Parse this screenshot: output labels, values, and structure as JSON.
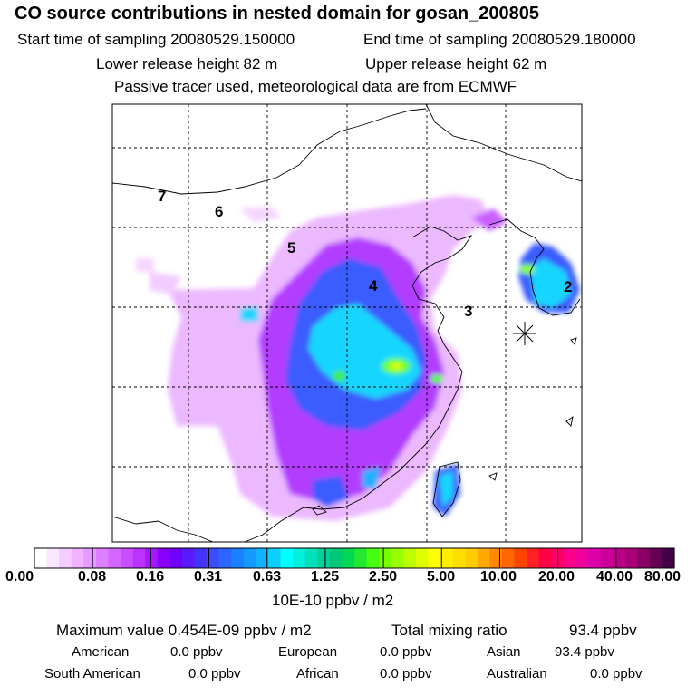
{
  "header": {
    "title": "CO  source contributions in nested domain for gosan_200805",
    "start_label": "Start time of sampling 20080529.150000",
    "end_label": "End time of sampling 20080529.180000",
    "lower_label": "Lower release height   82 m",
    "upper_label": "Upper release height   62 m",
    "tracer_label": "Passive tracer used, meteorological data are from ECMWF"
  },
  "map": {
    "region_numbers": [
      "7",
      "6",
      "5",
      "4",
      "3",
      "2"
    ],
    "receptor_marker": "star-marker",
    "grid": "dashed"
  },
  "colorbar": {
    "labels": [
      "0.00",
      "0.08",
      "0.16",
      "0.31",
      "0.63",
      "1.25",
      "2.50",
      "5.00",
      "10.00",
      "20.00",
      "40.00",
      "80.00"
    ],
    "colors": [
      "#ffffff",
      "#fbe6ff",
      "#f5ccff",
      "#efb3ff",
      "#e699ff",
      "#dd80ff",
      "#d466ff",
      "#c94dff",
      "#bb33ff",
      "#a31aff",
      "#8a00ff",
      "#7000ff",
      "#5a1aff",
      "#4433ff",
      "#3a4dff",
      "#2a66ff",
      "#1a80ff",
      "#1499ff",
      "#0fb3ff",
      "#0ccfff",
      "#00ffff",
      "#00f0dd",
      "#00e0bb",
      "#00d099",
      "#00c877",
      "#00d855",
      "#22e833",
      "#44ff11",
      "#77ff00",
      "#99ff00",
      "#bbff00",
      "#ddff00",
      "#ffff00",
      "#ffee00",
      "#ffdd00",
      "#ffcc00",
      "#ffaa00",
      "#ff8800",
      "#ff6600",
      "#ff4400",
      "#ff2222",
      "#ff0044",
      "#ff0066",
      "#ff0088",
      "#ee0099",
      "#dd00aa",
      "#cc0099",
      "#bb0088",
      "#aa0077",
      "#880066",
      "#660055",
      "#440044"
    ],
    "units": "10E-10 ppbv / m2"
  },
  "stats": {
    "max_label": "Maximum value  0.454E-09 ppbv / m2",
    "total_label": "Total mixing ratio",
    "total_value": "93.4 ppbv"
  },
  "regions": {
    "american_label": "American",
    "american_value": "0.0 ppbv",
    "european_label": "European",
    "european_value": "0.0 ppbv",
    "asian_label": "Asian",
    "asian_value": "93.4 ppbv",
    "south_american_label": "South American",
    "south_american_value": "0.0 ppbv",
    "african_label": "African",
    "african_value": "0.0 ppbv",
    "australian_label": "Australian",
    "australian_value": "0.0 ppbv"
  }
}
